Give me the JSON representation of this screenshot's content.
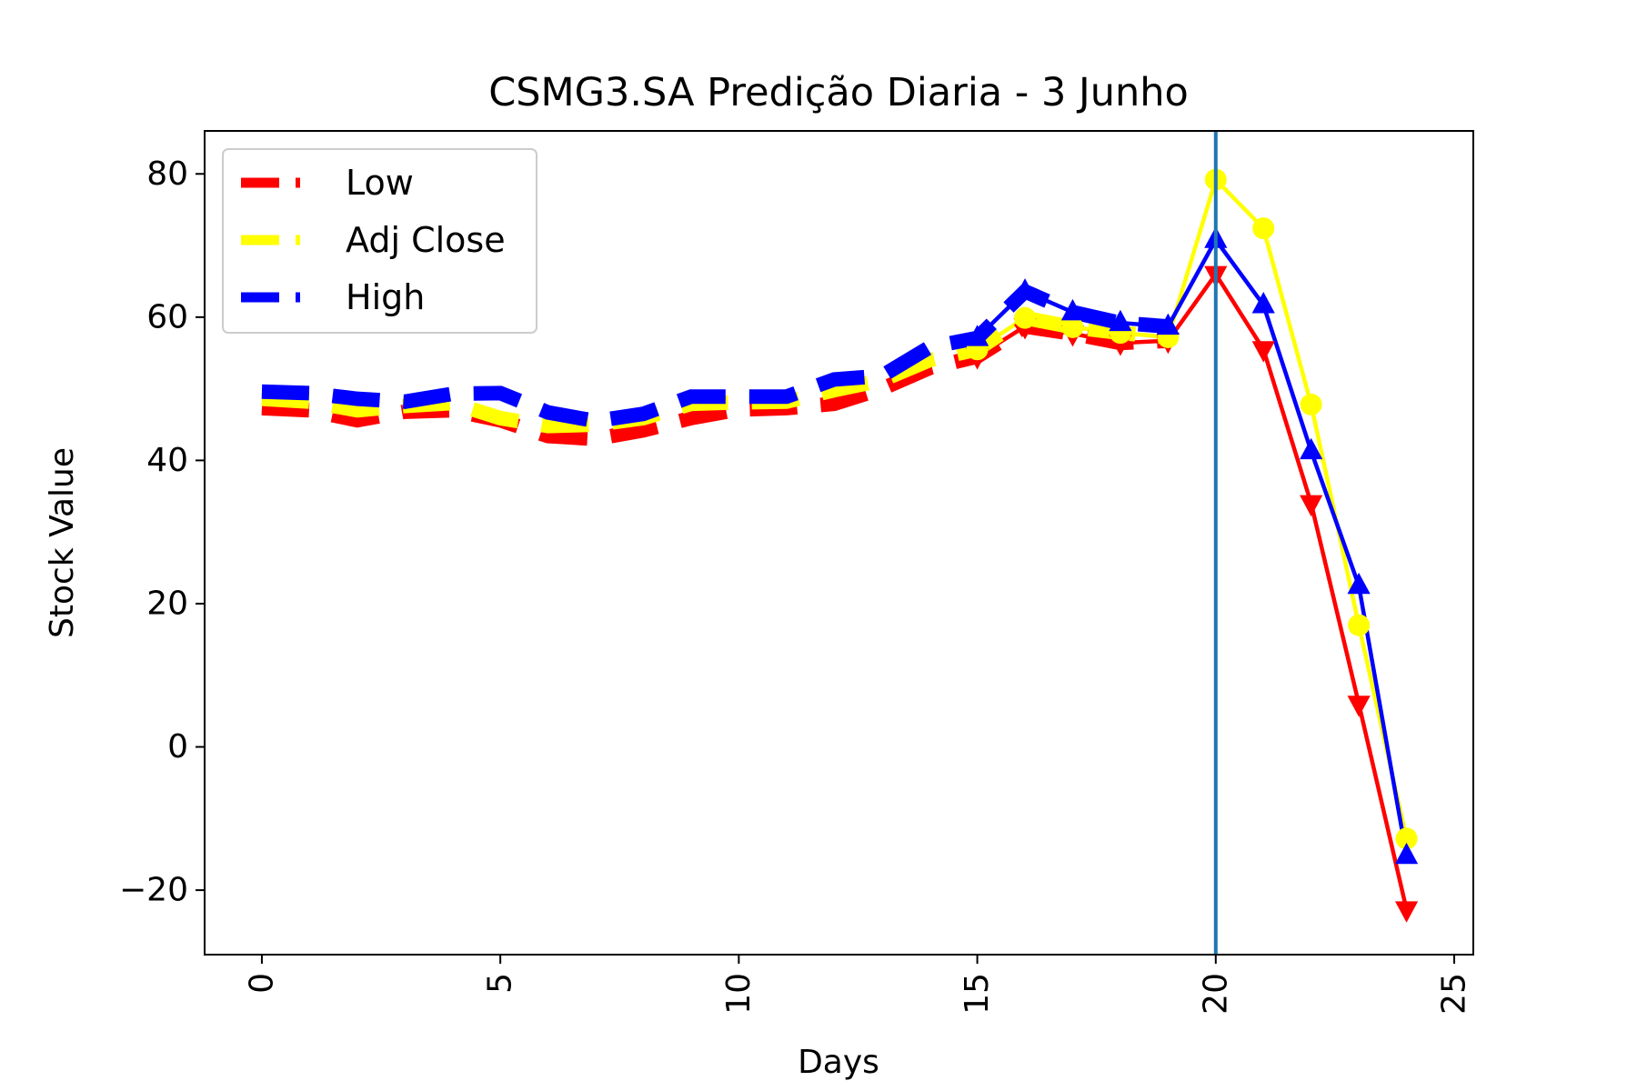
{
  "chart_data": {
    "type": "line",
    "title": "CSMG3.SA Predição Diaria - 3 Junho",
    "xlabel": "Days",
    "ylabel": "Stock Value",
    "xlim": [
      -1.2,
      25.4
    ],
    "ylim": [
      -29,
      86
    ],
    "xticks": [
      0,
      5,
      10,
      15,
      20,
      25
    ],
    "yticks": [
      -20,
      0,
      20,
      40,
      60,
      80
    ],
    "grid": false,
    "legend_position": "upper-left",
    "vertical_line": {
      "x": 20,
      "color": "#1f77b4"
    },
    "series": [
      {
        "name": "Low",
        "color": "#ff0000",
        "historical": {
          "x": [
            0,
            1,
            2,
            3,
            4,
            5,
            6,
            7,
            8,
            9,
            10,
            11,
            12,
            13,
            14,
            15,
            16,
            17,
            18,
            19
          ],
          "y": [
            47.3,
            47.0,
            45.6,
            46.8,
            47.0,
            45.6,
            43.4,
            43.0,
            44.2,
            45.9,
            47.1,
            47.3,
            47.9,
            50.0,
            52.9,
            54.5,
            58.7,
            57.7,
            56.4,
            56.7
          ]
        },
        "forecast": {
          "x": [
            15,
            16,
            17,
            18,
            19,
            20,
            21,
            22,
            23,
            24
          ],
          "y": [
            54.5,
            58.7,
            57.7,
            56.4,
            56.7,
            66.0,
            55.5,
            34.0,
            6.0,
            -22.7
          ]
        }
      },
      {
        "name": "Adj Close",
        "color": "#ffff00",
        "historical": {
          "x": [
            0,
            1,
            2,
            3,
            4,
            5,
            6,
            7,
            8,
            9,
            10,
            11,
            12,
            13,
            14,
            15,
            16,
            17,
            18,
            19
          ],
          "y": [
            48.6,
            48.2,
            47.0,
            47.6,
            48.0,
            45.9,
            44.8,
            45.0,
            45.9,
            47.9,
            48.1,
            48.2,
            49.8,
            51.2,
            54.0,
            55.5,
            59.9,
            58.6,
            57.8,
            57.2
          ]
        },
        "forecast": {
          "x": [
            15,
            16,
            17,
            18,
            19,
            20,
            21,
            22,
            23,
            24
          ],
          "y": [
            55.5,
            59.9,
            58.6,
            57.8,
            57.2,
            79.2,
            72.4,
            47.8,
            17.0,
            -12.8
          ]
        }
      },
      {
        "name": "High",
        "color": "#0000ff",
        "historical": {
          "x": [
            0,
            1,
            2,
            3,
            4,
            5,
            6,
            7,
            8,
            9,
            10,
            11,
            12,
            13,
            14,
            15,
            16,
            17,
            18,
            19
          ],
          "y": [
            49.6,
            49.4,
            48.6,
            48.2,
            49.3,
            49.4,
            46.7,
            45.5,
            46.5,
            48.9,
            48.9,
            48.9,
            51.3,
            51.8,
            55.8,
            57.1,
            63.6,
            60.7,
            59.2,
            58.7
          ]
        },
        "forecast": {
          "x": [
            15,
            16,
            17,
            18,
            19,
            20,
            21,
            22,
            23,
            24
          ],
          "y": [
            57.1,
            63.6,
            60.7,
            59.2,
            58.7,
            70.8,
            61.7,
            41.3,
            22.5,
            -15.2
          ]
        }
      }
    ]
  }
}
